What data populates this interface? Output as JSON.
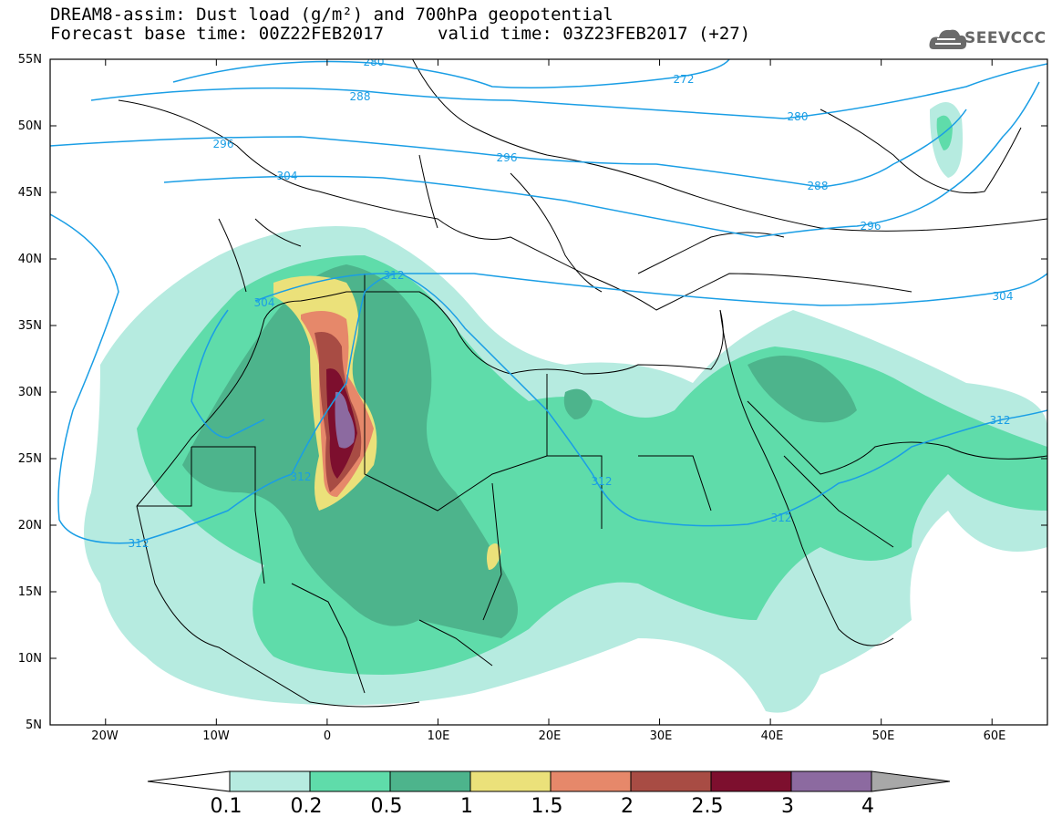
{
  "title": {
    "line1": "DREAM8-assim: Dust load (g/m²) and 700hPa geopotential",
    "line2": "Forecast base time: 00Z22FEB2017",
    "line2b": "valid time: 03Z23FEB2017 (+27)"
  },
  "logo": {
    "text": "SEEVCCC",
    "icon": "cloud-logo-icon"
  },
  "axes": {
    "lat_labels": [
      "55N",
      "50N",
      "45N",
      "40N",
      "35N",
      "30N",
      "25N",
      "20N",
      "15N",
      "10N",
      "5N"
    ],
    "lon_labels": [
      "20W",
      "10W",
      "0",
      "10E",
      "20E",
      "30E",
      "40E",
      "50E",
      "60E"
    ],
    "lon_range": [
      -25,
      65
    ],
    "lat_range": [
      5,
      55
    ]
  },
  "contours": {
    "color": "#1a9ee5",
    "labels": [
      {
        "text": "280"
      },
      {
        "text": "272"
      },
      {
        "text": "288"
      },
      {
        "text": "280"
      },
      {
        "text": "296"
      },
      {
        "text": "296"
      },
      {
        "text": "304"
      },
      {
        "text": "288"
      },
      {
        "text": "296"
      },
      {
        "text": "312"
      },
      {
        "text": "304"
      },
      {
        "text": "304"
      },
      {
        "text": "312"
      },
      {
        "text": "312"
      },
      {
        "text": "312"
      },
      {
        "text": "312"
      },
      {
        "text": "312"
      }
    ]
  },
  "legend": {
    "levels": [
      "0.1",
      "0.2",
      "0.5",
      "1",
      "1.5",
      "2",
      "2.5",
      "3",
      "4"
    ],
    "colors": [
      "#ffffff",
      "#b6ebe0",
      "#5fdcaa",
      "#4db48c",
      "#ebe17a",
      "#e6886a",
      "#a84c44",
      "#7d0f2e",
      "#8c6aa0",
      "#a8a8a8"
    ]
  }
}
